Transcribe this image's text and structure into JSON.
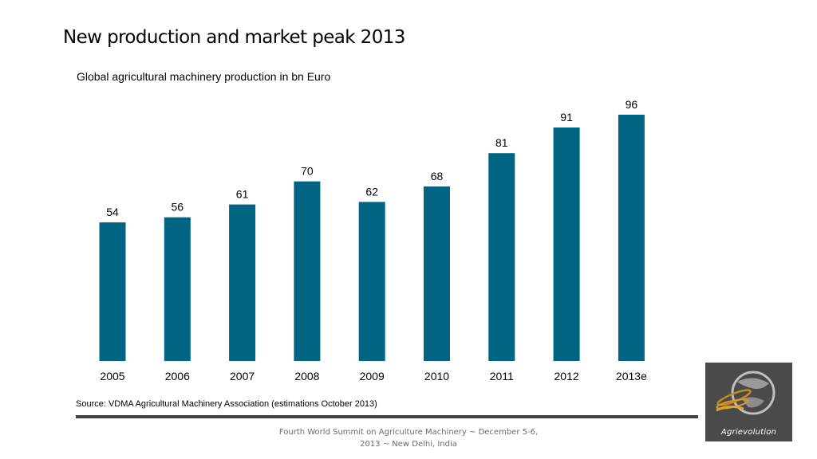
{
  "slide": {
    "title": "New production and market peak 2013",
    "source": "Source: VDMA Agricultural Machinery Association (estimations October 2013)",
    "footer": "Fourth World Summit on Agriculture Machinery ~ December 5-6, 2013 ~ New Delhi, India",
    "logo_text": "Agrievolution"
  },
  "colors": {
    "bar": "#006482",
    "rule": "#404040",
    "logo_bg": "#4a4a4a"
  },
  "chart_data": {
    "type": "bar",
    "title": "Global agricultural machinery production in bn Euro",
    "xlabel": "",
    "ylabel": "",
    "categories": [
      "2005",
      "2006",
      "2007",
      "2008",
      "2009",
      "2010",
      "2011",
      "2012",
      "2013e"
    ],
    "values": [
      54,
      56,
      61,
      70,
      62,
      68,
      81,
      91,
      96
    ],
    "ylim": [
      0,
      100
    ],
    "grid": false,
    "legend": "none",
    "data_labels": true
  }
}
